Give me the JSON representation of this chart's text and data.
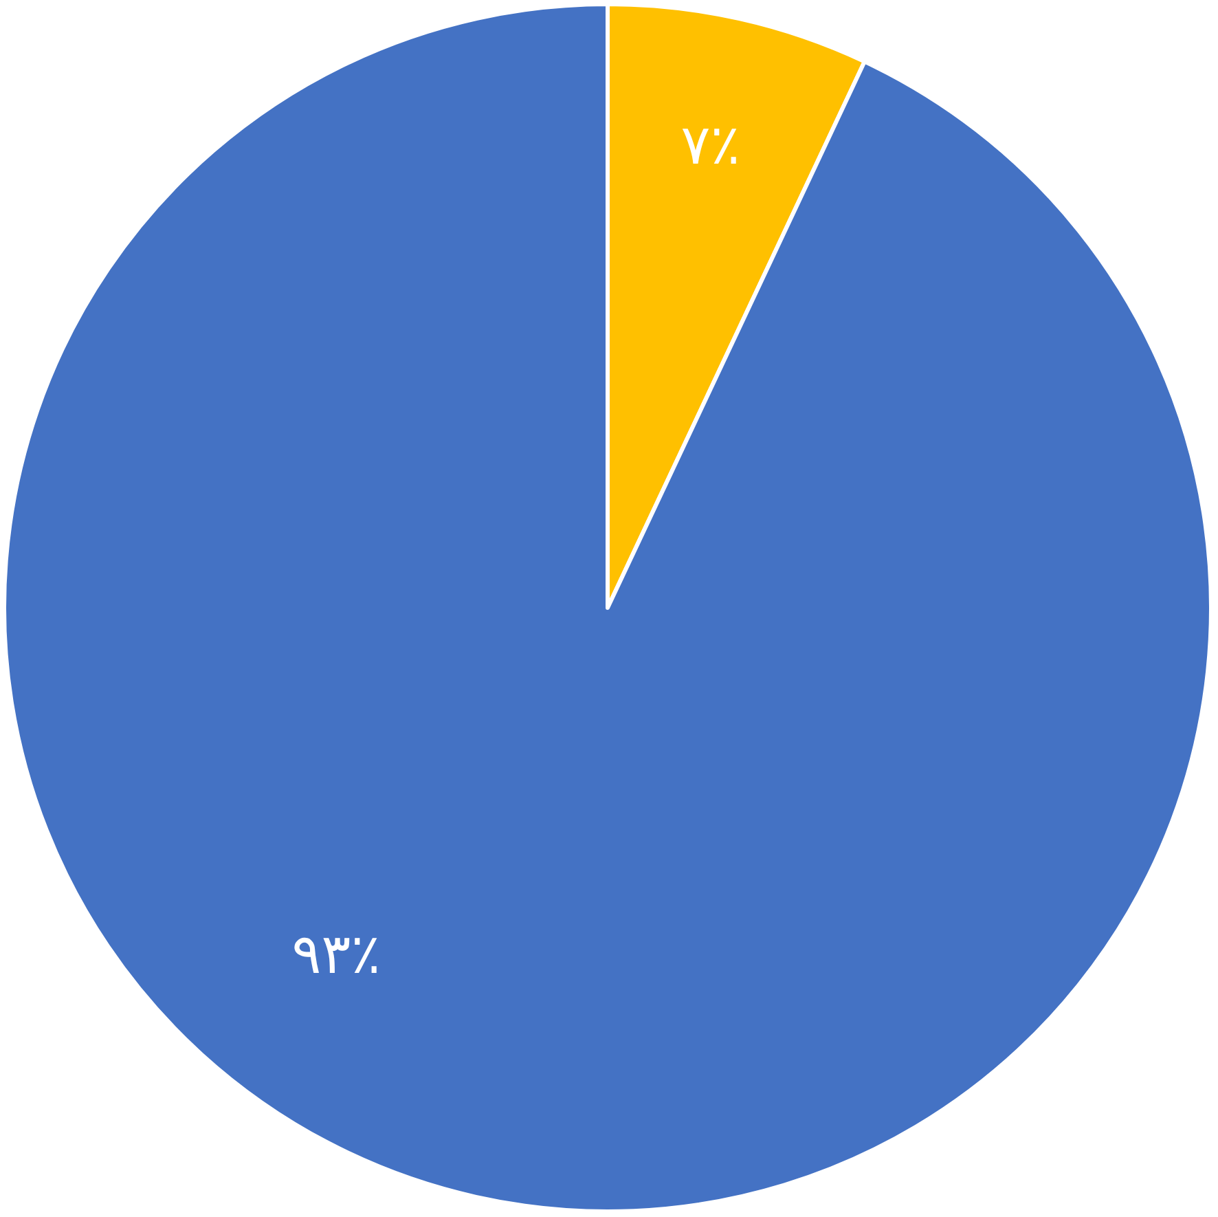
{
  "chart_data": {
    "type": "pie",
    "categories": [
      null,
      null
    ],
    "values": [
      7,
      93
    ],
    "colors": [
      "#ffc000",
      "#4472c4"
    ],
    "value_labels": [
      "۷٪",
      "۹۳٪"
    ]
  }
}
